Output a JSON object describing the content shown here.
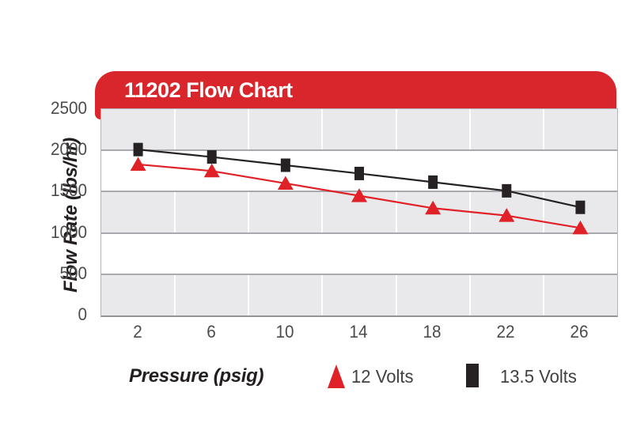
{
  "chart_data": {
    "type": "line",
    "title": "11202 Flow Chart",
    "xlabel": "Pressure (psig)",
    "ylabel": "Flow Rate (lbs/hr)",
    "x": [
      2,
      6,
      10,
      14,
      18,
      22,
      26
    ],
    "xticks": [
      "2",
      "6",
      "10",
      "14",
      "18",
      "22",
      "26"
    ],
    "yticks": [
      0,
      500,
      1000,
      1500,
      2000,
      2500
    ],
    "ylim": [
      0,
      2500
    ],
    "grid": "alternating horizontal bands every 500 units; white vertical gridlines at category boundaries",
    "legend_position": "bottom",
    "series": [
      {
        "name": "12 Volts",
        "marker": "triangle",
        "color": "#e02128",
        "values": [
          1830,
          1750,
          1600,
          1450,
          1300,
          1210,
          1060
        ]
      },
      {
        "name": "13.5 Volts",
        "marker": "square",
        "color": "#262223",
        "values": [
          2010,
          1920,
          1820,
          1720,
          1615,
          1510,
          1310
        ]
      }
    ]
  },
  "colors": {
    "header_red": "#d8262c",
    "band_gray": "#e9e9ec",
    "gridline_gray": "#a9a9af",
    "vline_white": "#ffffff",
    "axis_text": "#4b4b4d"
  }
}
